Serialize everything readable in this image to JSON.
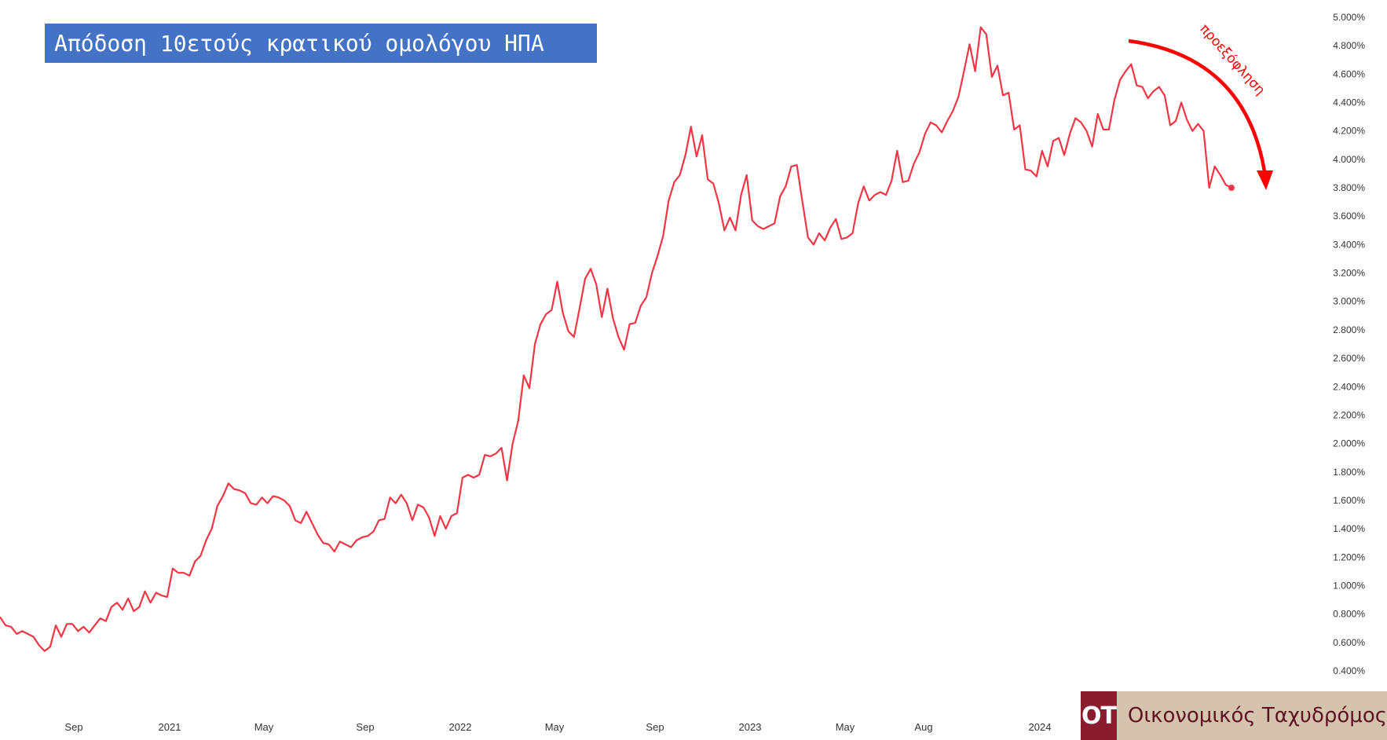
{
  "title": "Απόδοση 10ετούς κρατικού ομολόγου ΗΠΑ",
  "annotation": "προεξόφληση",
  "logo": {
    "badge": "OT",
    "name": "Οικονομικός Ταχυδρόμος"
  },
  "colors": {
    "line": "#f23645",
    "annotation": "#ff0000",
    "title_bg": "#4472c4",
    "logo_bg": "#d6c3ad",
    "logo_badge": "#8a1c2f"
  },
  "chart_data": {
    "type": "line",
    "title": "Απόδοση 10ετούς κρατικού ομολόγου ΗΠΑ",
    "xlabel": "",
    "ylabel": "",
    "ylim": [
      0.4,
      5.0
    ],
    "y_ticks": [
      "0.400%",
      "0.600%",
      "0.800%",
      "1.000%",
      "1.200%",
      "1.400%",
      "1.600%",
      "1.800%",
      "2.000%",
      "2.200%",
      "2.400%",
      "2.600%",
      "2.800%",
      "3.000%",
      "3.200%",
      "3.400%",
      "3.600%",
      "3.800%",
      "4.000%",
      "4.200%",
      "4.400%",
      "4.600%",
      "4.800%",
      "5.000%"
    ],
    "x_ticks": [
      "Sep",
      "2021",
      "May",
      "Sep",
      "2022",
      "May",
      "Sep",
      "2023",
      "May",
      "Aug",
      "2024"
    ],
    "grid": false,
    "legend": "none",
    "series": [
      {
        "values": [
          0.78,
          0.72,
          0.71,
          0.66,
          0.68,
          0.66,
          0.64,
          0.58,
          0.54,
          0.57,
          0.72,
          0.64,
          0.73,
          0.73,
          0.68,
          0.71,
          0.67,
          0.72,
          0.77,
          0.75,
          0.85,
          0.88,
          0.83,
          0.91,
          0.82,
          0.85,
          0.96,
          0.88,
          0.95,
          0.93,
          0.92,
          1.12,
          1.09,
          1.09,
          1.07,
          1.17,
          1.21,
          1.32,
          1.4,
          1.56,
          1.63,
          1.72,
          1.68,
          1.67,
          1.65,
          1.58,
          1.57,
          1.62,
          1.58,
          1.63,
          1.62,
          1.6,
          1.56,
          1.46,
          1.44,
          1.52,
          1.44,
          1.36,
          1.3,
          1.29,
          1.24,
          1.31,
          1.29,
          1.27,
          1.32,
          1.34,
          1.35,
          1.38,
          1.46,
          1.47,
          1.62,
          1.58,
          1.64,
          1.58,
          1.46,
          1.57,
          1.55,
          1.48,
          1.35,
          1.49,
          1.4,
          1.49,
          1.51,
          1.76,
          1.78,
          1.76,
          1.78,
          1.92,
          1.91,
          1.93,
          1.97,
          1.74,
          2.0,
          2.16,
          2.48,
          2.39,
          2.7,
          2.84,
          2.91,
          2.94,
          3.14,
          2.92,
          2.79,
          2.75,
          2.95,
          3.16,
          3.23,
          3.12,
          2.89,
          3.09,
          2.88,
          2.75,
          2.66,
          2.84,
          2.85,
          2.97,
          3.03,
          3.2,
          3.32,
          3.46,
          3.71,
          3.84,
          3.89,
          4.03,
          4.23,
          4.02,
          4.17,
          3.86,
          3.83,
          3.69,
          3.5,
          3.59,
          3.5,
          3.75,
          3.89,
          3.57,
          3.53,
          3.51,
          3.53,
          3.55,
          3.74,
          3.81,
          3.95,
          3.96,
          3.7,
          3.45,
          3.4,
          3.48,
          3.43,
          3.52,
          3.58,
          3.44,
          3.45,
          3.48,
          3.69,
          3.81,
          3.71,
          3.75,
          3.77,
          3.75,
          3.85,
          4.06,
          3.84,
          3.85,
          3.97,
          4.05,
          4.18,
          4.26,
          4.24,
          4.19,
          4.27,
          4.34,
          4.44,
          4.62,
          4.81,
          4.62,
          4.93,
          4.88,
          4.58,
          4.66,
          4.45,
          4.47,
          4.21,
          4.24,
          3.93,
          3.92,
          3.88,
          4.06,
          3.95,
          4.13,
          4.15,
          4.03,
          4.18,
          4.29,
          4.26,
          4.2,
          4.09,
          4.32,
          4.21,
          4.21,
          4.42,
          4.56,
          4.62,
          4.67,
          4.52,
          4.51,
          4.43,
          4.48,
          4.51,
          4.45,
          4.24,
          4.27,
          4.4,
          4.28,
          4.2,
          4.25,
          4.2,
          3.8,
          3.95,
          3.89,
          3.82,
          3.8
        ]
      }
    ]
  }
}
